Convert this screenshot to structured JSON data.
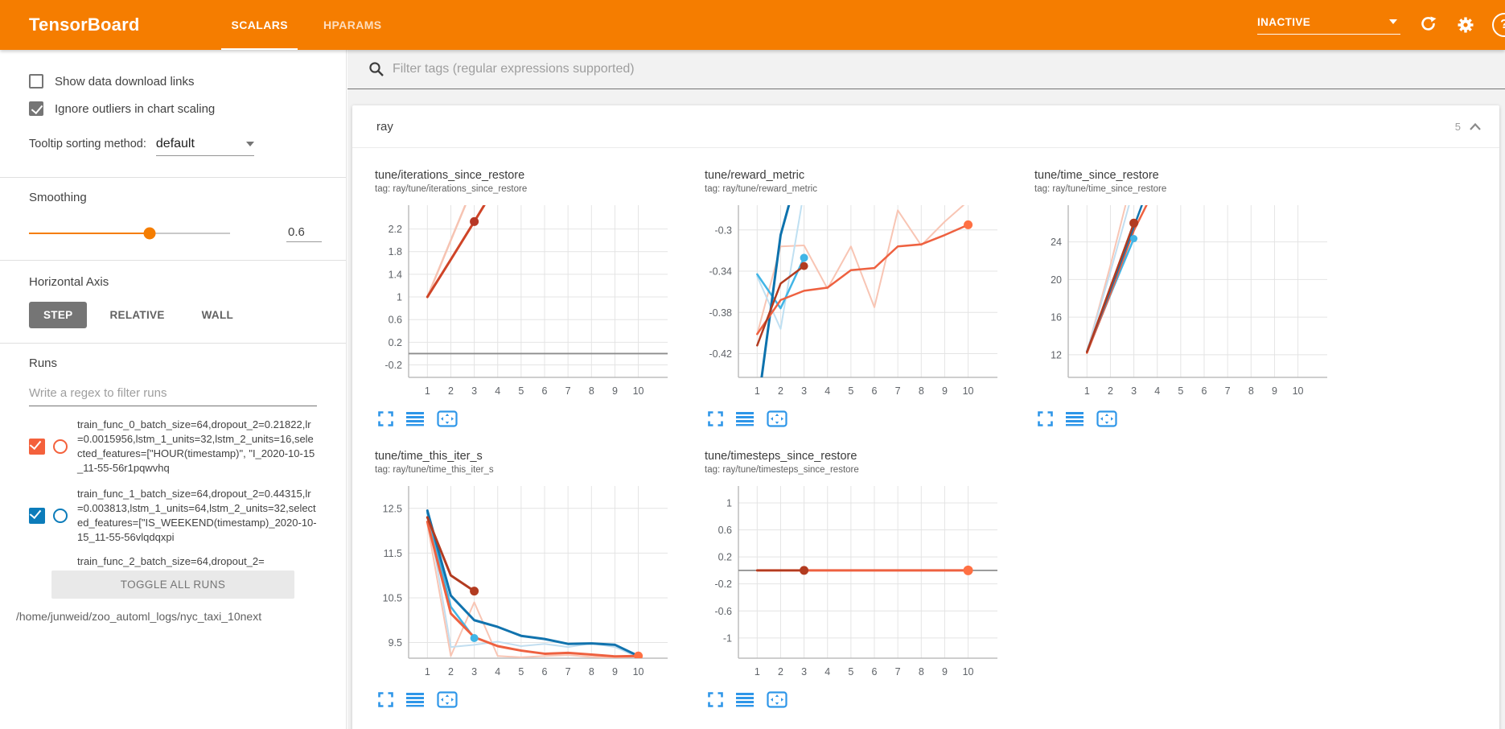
{
  "header": {
    "logo": "TensorBoard",
    "tabs": [
      {
        "label": "SCALARS",
        "active": true
      },
      {
        "label": "HPARAMS",
        "active": false
      }
    ],
    "status": "INACTIVE",
    "icons": [
      "refresh",
      "settings",
      "help"
    ]
  },
  "sidebar": {
    "checkboxes": [
      {
        "label": "Show data download links",
        "checked": false
      },
      {
        "label": "Ignore outliers in chart scaling",
        "checked": true
      }
    ],
    "tooltip_sorting": {
      "label": "Tooltip sorting method:",
      "value": "default"
    },
    "smoothing": {
      "label": "Smoothing",
      "value": "0.6"
    },
    "horizontal_axis": {
      "label": "Horizontal Axis",
      "options": [
        "STEP",
        "RELATIVE",
        "WALL"
      ],
      "selected": "STEP"
    },
    "runs": {
      "label": "Runs",
      "filter_placeholder": "Write a regex to filter runs",
      "items": [
        {
          "name": "train_func_0_batch_size=64,dropout_2=0.21822,lr=0.0015956,lstm_1_units=32,lstm_2_units=16,selected_features=[\"HOUR(timestamp)\", \"I_2020-10-15_11-55-56r1pqwvhq",
          "checked": true,
          "color": "#f4613c"
        },
        {
          "name": "train_func_1_batch_size=64,dropout_2=0.44315,lr=0.003813,lstm_1_units=64,lstm_2_units=32,selected_features=[\"IS_WEEKEND(timestamp)_2020-10-15_11-55-56vlqdqxpi",
          "checked": true,
          "color": "#0c7cba"
        },
        {
          "name": "train_func_2_batch_size=64,dropout_2=",
          "checked": true,
          "color": "#33bbee"
        }
      ],
      "toggle_button": "TOGGLE ALL RUNS",
      "log_path": "/home/junweid/zoo_automl_logs/nyc_taxi_10next"
    }
  },
  "main": {
    "filter_placeholder": "Filter tags (regular expressions supported)",
    "section": {
      "name": "ray",
      "count": "5"
    }
  },
  "colors": {
    "accent_orange": "#f57d00",
    "run_orange": "#f4613c",
    "run_blue": "#0c7cba",
    "toolbar_icon_blue": "#2e96e8"
  },
  "chart_data": [
    {
      "type": "line",
      "title": "tune/iterations_since_restore",
      "tag": "tag: ray/tune/iterations_since_restore",
      "x_ticks": [
        1,
        2,
        3,
        4,
        5,
        6,
        7,
        8,
        9,
        10
      ],
      "y_ticks": [
        -0.2,
        0.2,
        0.6,
        1,
        1.4,
        1.8,
        2.2
      ],
      "xlim": [
        0.2,
        11.25
      ],
      "ylim": [
        -0.42,
        2.62
      ],
      "zero_line": 0,
      "grid": true,
      "legend": "none",
      "series": [
        {
          "name": "raw (faded)",
          "color": "#f6c3b2",
          "width": 2.5,
          "points": [
            [
              1,
              1
            ],
            [
              2.8,
              2.8
            ]
          ]
        },
        {
          "name": "smoothed",
          "color": "#cf4427",
          "width": 3,
          "points": [
            [
              1,
              1
            ],
            [
              2,
              1.66
            ],
            [
              3,
              2.33
            ],
            [
              3.5,
              2.67
            ]
          ],
          "dot": [
            3,
            2.33
          ],
          "dot_color": "#b63726",
          "dot_r": 5.5
        }
      ]
    },
    {
      "type": "line",
      "title": "tune/reward_metric",
      "tag": "tag: ray/tune/reward_metric",
      "x_ticks": [
        1,
        2,
        3,
        4,
        5,
        6,
        7,
        8,
        9,
        10
      ],
      "y_ticks": [
        -0.42,
        -0.38,
        -0.34,
        -0.3
      ],
      "xlim": [
        0.2,
        11.25
      ],
      "ylim": [
        -0.443,
        -0.276
      ],
      "grid": true,
      "legend": "none",
      "series": [
        {
          "name": "orange raw (faded)",
          "color": "#f8c5b4",
          "width": 2,
          "points": [
            [
              1,
              -0.401
            ],
            [
              2,
              -0.316
            ],
            [
              3,
              -0.315
            ],
            [
              4,
              -0.357
            ],
            [
              5,
              -0.316
            ],
            [
              6,
              -0.375
            ],
            [
              7,
              -0.281
            ],
            [
              8,
              -0.315
            ],
            [
              9,
              -0.292
            ],
            [
              10,
              -0.272
            ]
          ]
        },
        {
          "name": "blue raw (faded)",
          "color": "#bfe0f2",
          "width": 2,
          "points": [
            [
              1,
              -0.345
            ],
            [
              2,
              -0.396
            ],
            [
              3,
              -0.262
            ]
          ]
        },
        {
          "name": "cyan smoothed",
          "color": "#41b5e6",
          "width": 2.5,
          "points": [
            [
              1,
              -0.343
            ],
            [
              2,
              -0.376
            ],
            [
              3,
              -0.327
            ]
          ],
          "dot": [
            3,
            -0.327
          ],
          "dot_color": "#41b5e6",
          "dot_r": 5
        },
        {
          "name": "blue smoothed",
          "color": "#0d72ad",
          "width": 3,
          "points": [
            [
              1.15,
              -0.45
            ],
            [
              2,
              -0.305
            ],
            [
              2.45,
              -0.268
            ]
          ]
        },
        {
          "name": "orange smoothed",
          "color": "#ee6140",
          "width": 2.5,
          "points": [
            [
              1,
              -0.401
            ],
            [
              2,
              -0.368
            ],
            [
              3,
              -0.359
            ],
            [
              4,
              -0.356
            ],
            [
              5,
              -0.339
            ],
            [
              6,
              -0.337
            ],
            [
              7,
              -0.316
            ],
            [
              8,
              -0.314
            ],
            [
              9,
              -0.305
            ],
            [
              10,
              -0.295
            ]
          ],
          "dot": [
            10,
            -0.295
          ],
          "dot_color": "#ff7043",
          "dot_r": 5.5
        },
        {
          "name": "dark-red smoothed",
          "color": "#b23b20",
          "width": 2.5,
          "points": [
            [
              1,
              -0.412
            ],
            [
              2,
              -0.352
            ],
            [
              3,
              -0.335
            ]
          ],
          "dot": [
            3,
            -0.335
          ],
          "dot_color": "#b23b20",
          "dot_r": 5
        }
      ]
    },
    {
      "type": "line",
      "title": "tune/time_since_restore",
      "tag": "tag: ray/tune/time_since_restore",
      "x_ticks": [
        1,
        2,
        3,
        4,
        5,
        6,
        7,
        8,
        9,
        10
      ],
      "y_ticks": [
        12,
        16,
        20,
        24
      ],
      "xlim": [
        0.2,
        11.25
      ],
      "ylim": [
        9.6,
        27.9
      ],
      "grid": true,
      "legend": "none",
      "series": [
        {
          "name": "orange raw (faded)",
          "color": "#f8c5b4",
          "width": 2,
          "points": [
            [
              1,
              12.3
            ],
            [
              2,
              21.5
            ],
            [
              2.65,
              27.95
            ]
          ]
        },
        {
          "name": "blue raw (faded)",
          "color": "#c2def0",
          "width": 2,
          "points": [
            [
              1,
              12.4
            ],
            [
              2,
              20.8
            ],
            [
              2.8,
              27.95
            ]
          ]
        },
        {
          "name": "cyan smoothed",
          "color": "#41b5e6",
          "width": 2.5,
          "points": [
            [
              1,
              12.3
            ],
            [
              2,
              18.4
            ],
            [
              3,
              24.35
            ]
          ],
          "dot": [
            3,
            24.35
          ],
          "dot_color": "#41b5e6",
          "dot_r": 4.5
        },
        {
          "name": "orange smoothed",
          "color": "#ee6140",
          "width": 2.5,
          "points": [
            [
              1,
              12.2
            ],
            [
              2,
              18.5
            ],
            [
              3,
              25.2
            ],
            [
              3.55,
              27.95
            ]
          ]
        },
        {
          "name": "blue smoothed",
          "color": "#1173ae",
          "width": 2.5,
          "points": [
            [
              1,
              12.35
            ],
            [
              2,
              18.9
            ],
            [
              3,
              25.6
            ],
            [
              3.35,
              27.95
            ]
          ]
        },
        {
          "name": "dark-red smoothed",
          "color": "#b23b20",
          "width": 2.5,
          "points": [
            [
              1,
              12.3
            ],
            [
              2,
              19.2
            ],
            [
              3,
              26.0
            ]
          ],
          "dot": [
            3,
            26.0
          ],
          "dot_color": "#b23b20",
          "dot_r": 5.5
        }
      ]
    },
    {
      "type": "line",
      "title": "tune/time_this_iter_s",
      "tag": "tag: ray/tune/time_this_iter_s",
      "x_ticks": [
        1,
        2,
        3,
        4,
        5,
        6,
        7,
        8,
        9,
        10
      ],
      "y_ticks": [
        9.5,
        10.5,
        11.5,
        12.5
      ],
      "xlim": [
        0.2,
        11.25
      ],
      "ylim": [
        9.15,
        13.0
      ],
      "grid": true,
      "legend": "none",
      "series": [
        {
          "name": "orange raw (faded)",
          "color": "#f8c5b4",
          "width": 2,
          "points": [
            [
              1,
              12.15
            ],
            [
              2,
              9.2
            ],
            [
              3,
              10.4
            ],
            [
              4,
              9.2
            ],
            [
              5,
              9.17
            ],
            [
              6,
              9.2
            ],
            [
              7,
              9.22
            ],
            [
              8,
              9.18
            ],
            [
              9,
              9.16
            ],
            [
              10,
              9.19
            ]
          ]
        },
        {
          "name": "blue raw (faded)",
          "color": "#c2def0",
          "width": 2,
          "points": [
            [
              1,
              12.45
            ],
            [
              2,
              9.4
            ],
            [
              3,
              9.45
            ],
            [
              4,
              9.52
            ],
            [
              5,
              9.42
            ],
            [
              6,
              9.47
            ],
            [
              7,
              9.4
            ],
            [
              8,
              9.48
            ],
            [
              9,
              9.4
            ],
            [
              10,
              9.17
            ]
          ]
        },
        {
          "name": "cyan smoothed",
          "color": "#41b5e6",
          "width": 2.5,
          "points": [
            [
              1,
              12.4
            ],
            [
              2,
              10.3
            ],
            [
              3,
              9.6
            ]
          ],
          "dot": [
            3,
            9.6
          ],
          "dot_color": "#41b5e6",
          "dot_r": 5
        },
        {
          "name": "blue smoothed",
          "color": "#1173ae",
          "width": 3,
          "points": [
            [
              1,
              12.45
            ],
            [
              2,
              10.55
            ],
            [
              3,
              10.0
            ],
            [
              4,
              9.85
            ],
            [
              5,
              9.65
            ],
            [
              6,
              9.58
            ],
            [
              7,
              9.47
            ],
            [
              8,
              9.48
            ],
            [
              9,
              9.45
            ],
            [
              10,
              9.2
            ]
          ]
        },
        {
          "name": "orange smoothed",
          "color": "#ee6140",
          "width": 3,
          "points": [
            [
              1,
              12.2
            ],
            [
              2,
              10.15
            ],
            [
              3,
              9.62
            ],
            [
              4,
              9.42
            ],
            [
              5,
              9.32
            ],
            [
              6,
              9.25
            ],
            [
              7,
              9.27
            ],
            [
              8,
              9.23
            ],
            [
              9,
              9.19
            ],
            [
              10,
              9.2
            ]
          ],
          "dot": [
            10,
            9.2
          ],
          "dot_color": "#ff7043",
          "dot_r": 5.5
        },
        {
          "name": "dark-red smoothed",
          "color": "#b23b20",
          "width": 3,
          "points": [
            [
              1,
              12.3
            ],
            [
              2,
              11.0
            ],
            [
              3,
              10.65
            ]
          ],
          "dot": [
            3,
            10.65
          ],
          "dot_color": "#b23b20",
          "dot_r": 5.5
        }
      ]
    },
    {
      "type": "line",
      "title": "tune/timesteps_since_restore",
      "tag": "tag: ray/tune/timesteps_since_restore",
      "x_ticks": [
        1,
        2,
        3,
        4,
        5,
        6,
        7,
        8,
        9,
        10
      ],
      "y_ticks": [
        -1,
        -0.6,
        -0.2,
        0.2,
        0.6,
        1
      ],
      "xlim": [
        0.2,
        11.25
      ],
      "ylim": [
        -1.3,
        1.25
      ],
      "zero_line": 0,
      "grid": true,
      "legend": "none",
      "series": [
        {
          "name": "orange smoothed",
          "color": "#ee6140",
          "width": 3,
          "points": [
            [
              1,
              0
            ],
            [
              10,
              0
            ]
          ],
          "dot": [
            10,
            0
          ],
          "dot_color": "#ff7043",
          "dot_r": 6
        },
        {
          "name": "dark-red smoothed",
          "color": "#b23b20",
          "width": 2.5,
          "points": [
            [
              1,
              0
            ],
            [
              3,
              0
            ]
          ],
          "dot": [
            3,
            0
          ],
          "dot_color": "#b23b20",
          "dot_r": 5.5
        }
      ]
    }
  ]
}
